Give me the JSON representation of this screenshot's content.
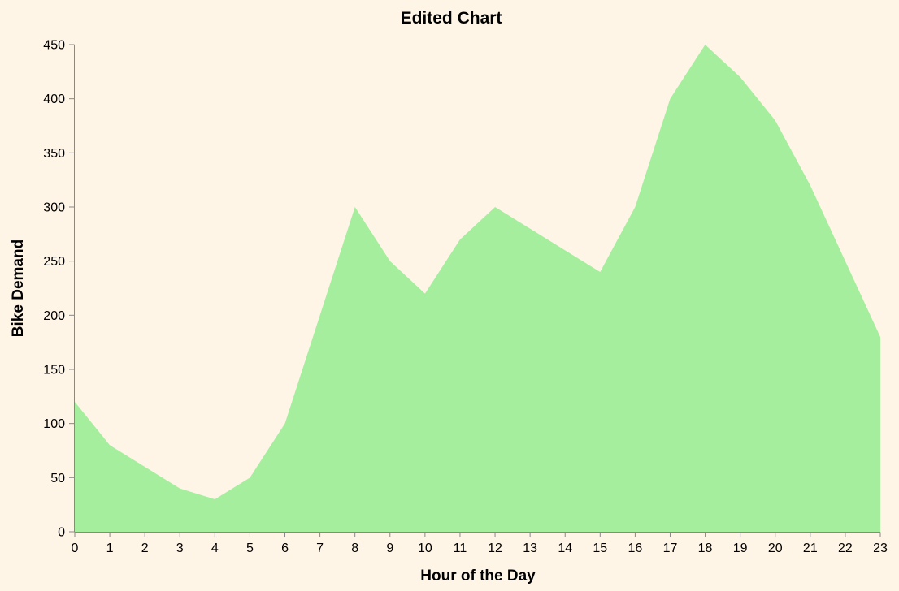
{
  "chart_data": {
    "type": "area",
    "title": "Edited Chart",
    "xlabel": "Hour of the Day",
    "ylabel": "Bike Demand",
    "x": [
      0,
      1,
      2,
      3,
      4,
      5,
      6,
      7,
      8,
      9,
      10,
      11,
      12,
      13,
      14,
      15,
      16,
      17,
      18,
      19,
      20,
      21,
      22,
      23
    ],
    "values": [
      120,
      80,
      60,
      40,
      30,
      50,
      100,
      200,
      300,
      250,
      220,
      270,
      300,
      280,
      260,
      240,
      300,
      400,
      450,
      420,
      380,
      320,
      250,
      180
    ],
    "xlim": [
      0,
      23
    ],
    "ylim": [
      0,
      450
    ],
    "yticks": [
      0,
      50,
      100,
      150,
      200,
      250,
      300,
      350,
      400,
      450
    ],
    "grid": false,
    "colors": {
      "background": "#fef5e7",
      "area": "#a5ee9e",
      "axis": "#888888"
    }
  }
}
